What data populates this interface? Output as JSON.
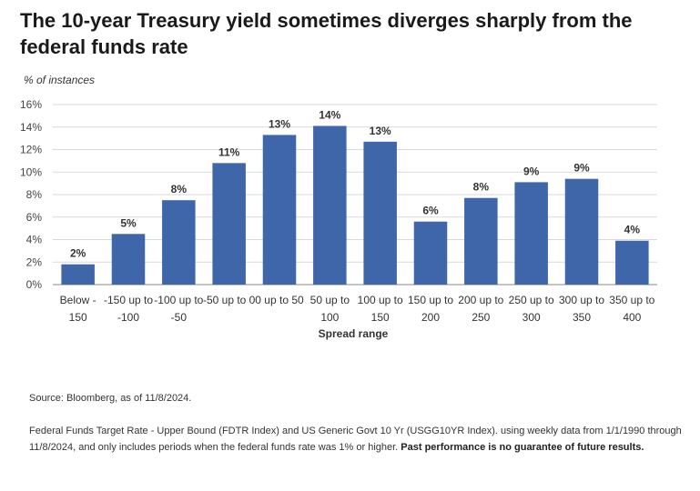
{
  "title": "The 10-year Treasury yield sometimes diverges sharply from the federal funds rate",
  "chart_data": {
    "type": "bar",
    "ylabel": "% of instances",
    "xlabel": "Spread range",
    "ylim": [
      0,
      16
    ],
    "yticks": [
      "0%",
      "2%",
      "4%",
      "6%",
      "8%",
      "10%",
      "12%",
      "14%",
      "16%"
    ],
    "grid": true,
    "bar_color": "#3f66a8",
    "categories": [
      [
        "Below -",
        "150"
      ],
      [
        "-150 up to",
        "-100"
      ],
      [
        "-100 up to",
        "-50"
      ],
      [
        "-50 up to 0"
      ],
      [
        "0 up to 50"
      ],
      [
        "50 up to",
        "100"
      ],
      [
        "100 up to",
        "150"
      ],
      [
        "150 up to",
        "200"
      ],
      [
        "200 up to",
        "250"
      ],
      [
        "250 up to",
        "300"
      ],
      [
        "300 up to",
        "350"
      ],
      [
        "350 up to",
        "400"
      ]
    ],
    "values": [
      1.8,
      4.5,
      7.5,
      10.8,
      13.3,
      14.1,
      12.7,
      5.6,
      7.7,
      9.1,
      9.4,
      3.9
    ],
    "data_labels": [
      "2%",
      "5%",
      "8%",
      "11%",
      "13%",
      "14%",
      "13%",
      "6%",
      "8%",
      "9%",
      "9%",
      "4%"
    ]
  },
  "footer": {
    "source": "Source: Bloomberg, as of 11/8/2024.",
    "notes": "Federal Funds Target Rate - Upper Bound (FDTR Index) and US Generic Govt 10 Yr (USGG10YR Index). using weekly data from 1/1/1990 through 11/8/2024, and only includes periods when the federal funds rate was 1% or higher.",
    "disclaimer": "Past performance is no guarantee of future results."
  }
}
